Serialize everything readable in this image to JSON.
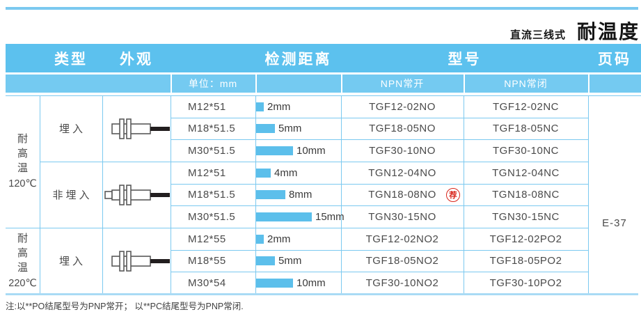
{
  "page": {
    "topbar_subtitle": "直流三线式",
    "topbar_title": "耐温度",
    "footnote": "注:以**PO结尾型号为PNP常开； 以**PC结尾型号为PNP常闭.",
    "page_code": "E-37"
  },
  "colors": {
    "header_blue": "#5cc1ee",
    "subheader_blue": "#74caf1",
    "grid_blue": "#7bc9f0",
    "bar_blue": "#5cbfeb",
    "badge_red": "#d9261c"
  },
  "table": {
    "headers": {
      "type": "类型",
      "appearance": "外观",
      "distance": "检测距离",
      "model": "型号",
      "page": "页码"
    },
    "subheaders": {
      "unit": "单位：mm",
      "npn_no": "NPN常开",
      "npn_nc": "NPN常闭"
    },
    "temp_groups": [
      {
        "chars": [
          "耐",
          "高",
          "温"
        ],
        "value": "120℃"
      },
      {
        "chars": [
          "耐",
          "高",
          "温"
        ],
        "value": "220℃"
      }
    ],
    "type_cells": [
      {
        "label": "埋入",
        "sensor": "shielded"
      },
      {
        "label": "非埋入",
        "sensor": "unshielded"
      },
      {
        "label": "埋入",
        "sensor": "shielded"
      }
    ],
    "badge_label": "荐",
    "rows": [
      {
        "size": "M12*51",
        "mm": 2,
        "distance": "2mm",
        "npn_no": "TGF12-02NO",
        "npn_nc": "TGF12-02NC",
        "recommended": false
      },
      {
        "size": "M18*51.5",
        "mm": 5,
        "distance": "5mm",
        "npn_no": "TGF18-05NO",
        "npn_nc": "TGF18-05NC",
        "recommended": false
      },
      {
        "size": "M30*51.5",
        "mm": 10,
        "distance": "10mm",
        "npn_no": "TGF30-10NO",
        "npn_nc": "TGF30-10NC",
        "recommended": false
      },
      {
        "size": "M12*51",
        "mm": 4,
        "distance": "4mm",
        "npn_no": "TGN12-04NO",
        "npn_nc": "TGN12-04NC",
        "recommended": false
      },
      {
        "size": "M18*51.5",
        "mm": 8,
        "distance": "8mm",
        "npn_no": "TGN18-08NO",
        "npn_nc": "TGN18-08NC",
        "recommended": true
      },
      {
        "size": "M30*51.5",
        "mm": 15,
        "distance": "15mm",
        "npn_no": "TGN30-15NO",
        "npn_nc": "TGN30-15NC",
        "recommended": false
      },
      {
        "size": "M12*55",
        "mm": 2,
        "distance": "2mm",
        "npn_no": "TGF12-02NO2",
        "npn_nc": "TGF12-02PO2",
        "recommended": false
      },
      {
        "size": "M18*55",
        "mm": 5,
        "distance": "5mm",
        "npn_no": "TGF18-05NO2",
        "npn_nc": "TGF18-05PO2",
        "recommended": false
      },
      {
        "size": "M30*54",
        "mm": 10,
        "distance": "10mm",
        "npn_no": "TGF30-10NO2",
        "npn_nc": "TGF30-10PO2",
        "recommended": false
      }
    ]
  }
}
